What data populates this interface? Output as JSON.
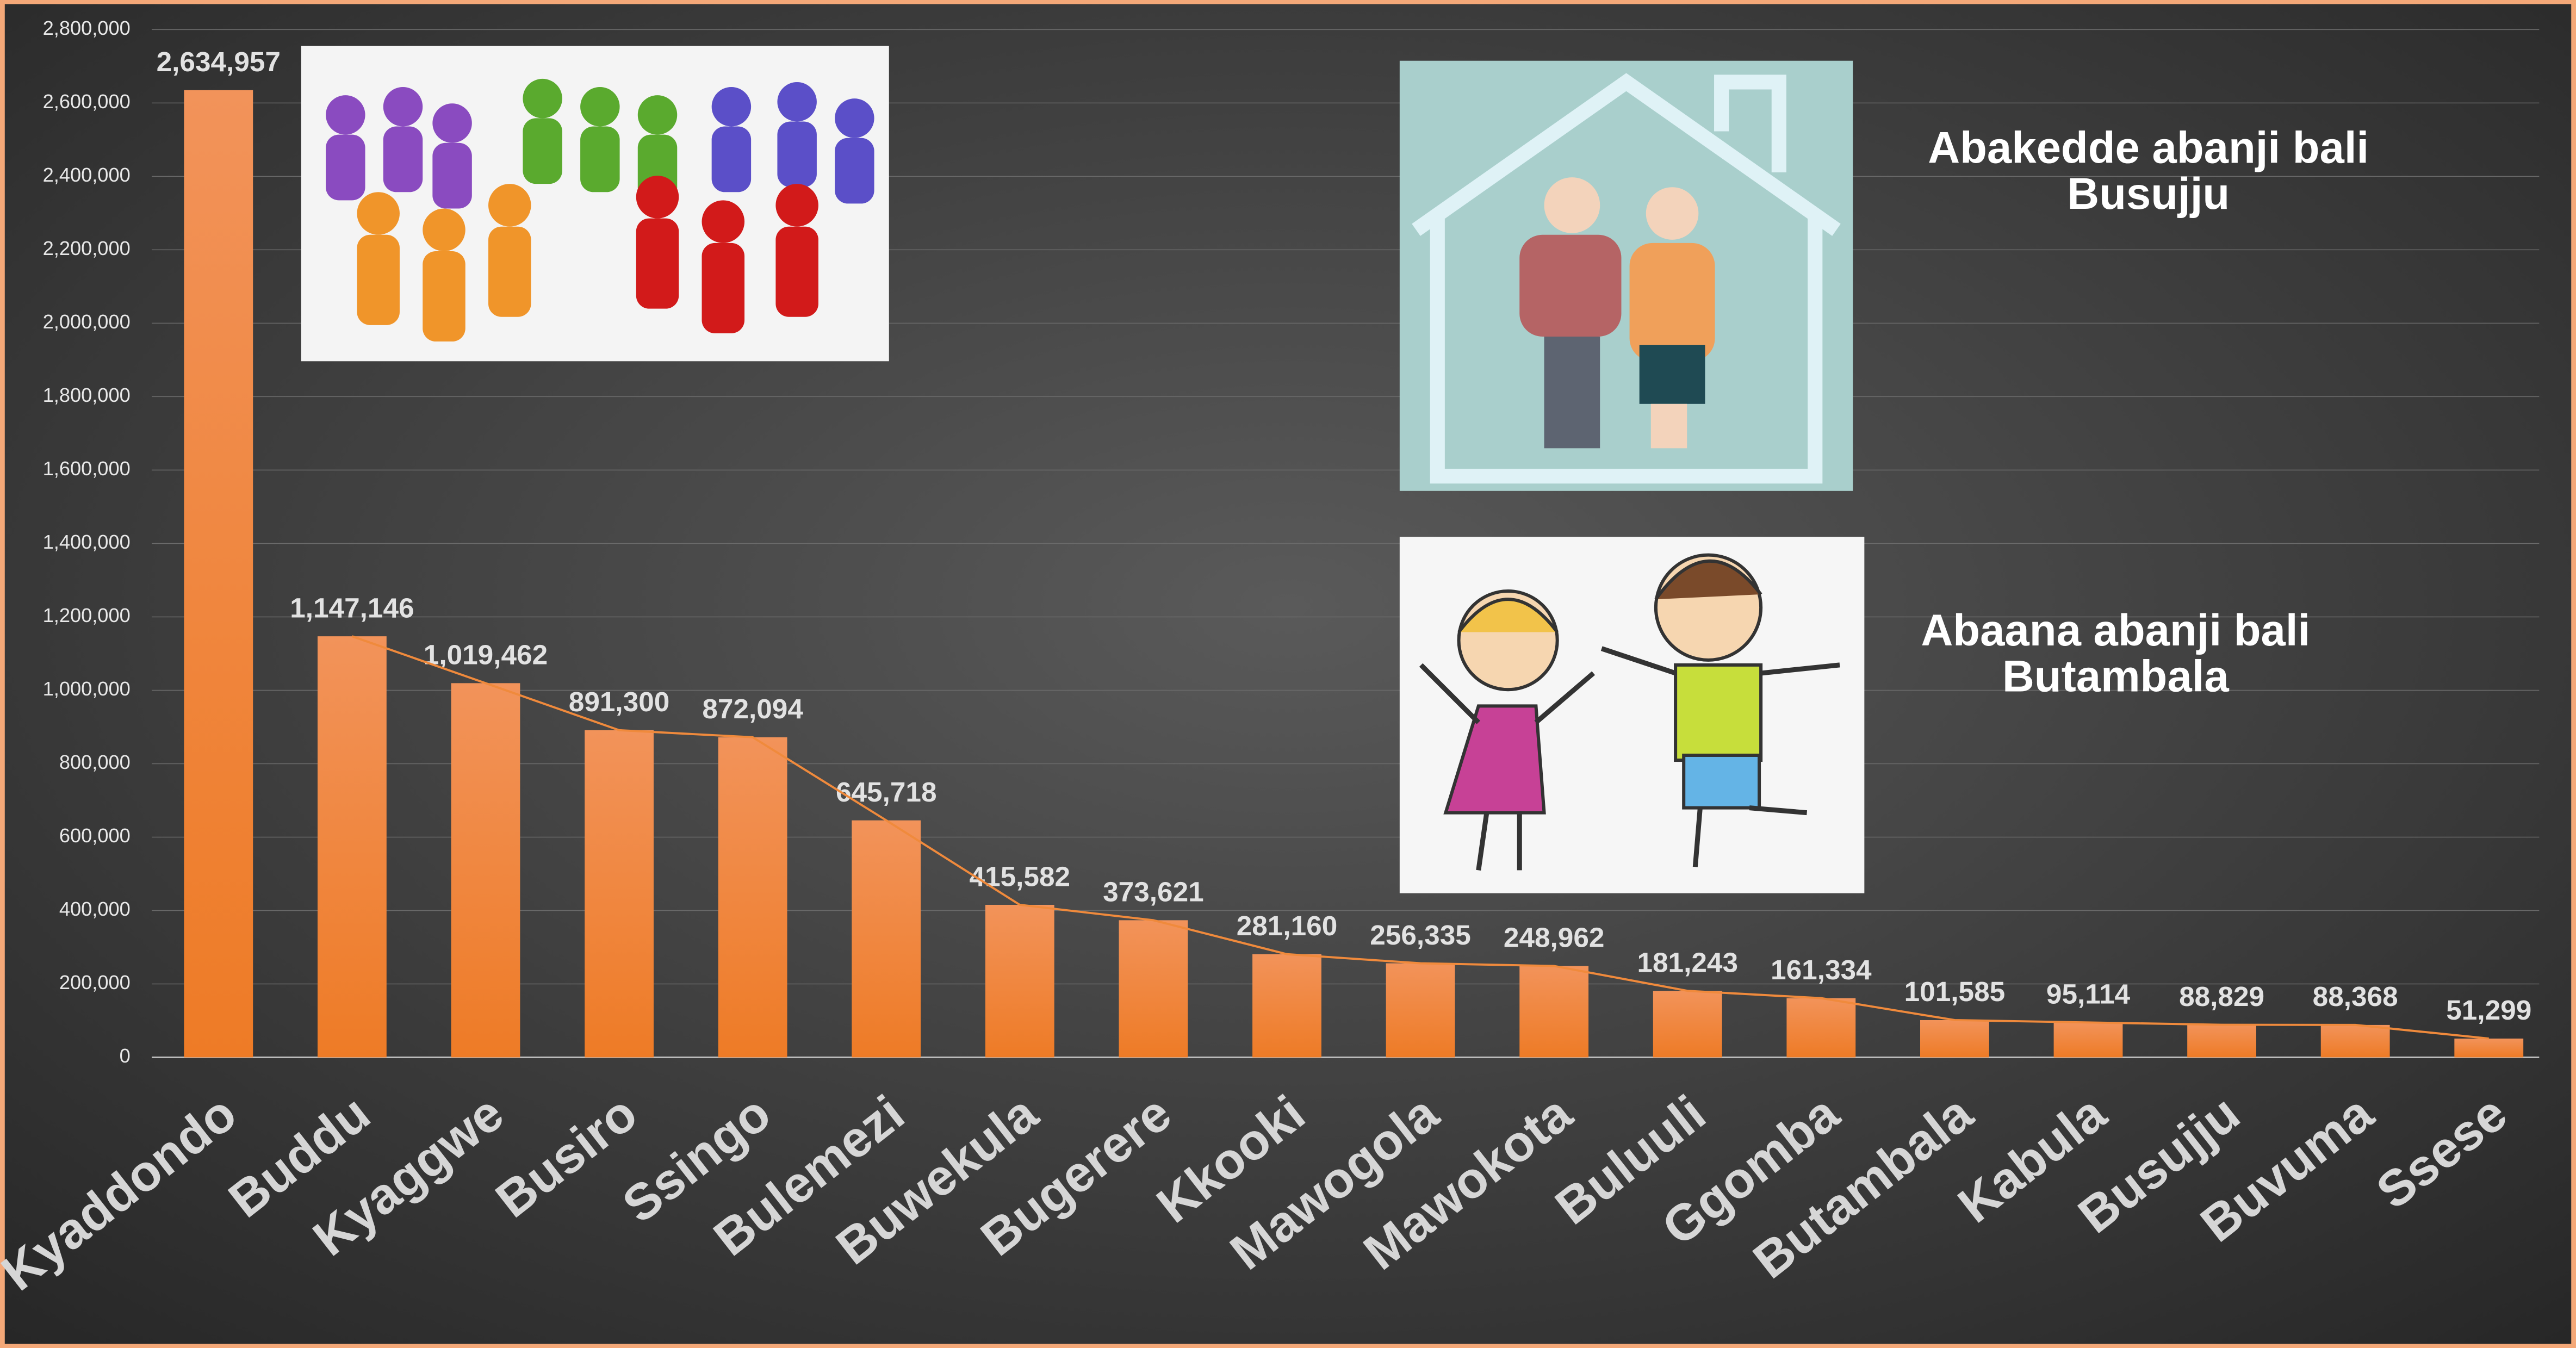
{
  "chart_data": {
    "type": "bar",
    "categories": [
      "Kyaddondo",
      "Buddu",
      "Kyaggwe",
      "Busiro",
      "Ssingo",
      "Bulemezi",
      "Buwekula",
      "Bugerere",
      "Kkooki",
      "Mawogola",
      "Mawokota",
      "Buluuli",
      "Ggomba",
      "Butambala",
      "Kabula",
      "Busujju",
      "Buvuma",
      "Ssese"
    ],
    "values": [
      2634957,
      1147146,
      1019462,
      891300,
      872094,
      645718,
      415582,
      373621,
      281160,
      256335,
      248962,
      181243,
      161334,
      101585,
      95114,
      88829,
      88368,
      51299
    ],
    "value_labels": [
      "2,634,957",
      "1,147,146",
      "1,019,462",
      "891,300",
      "872,094",
      "645,718",
      "415,582",
      "373,621",
      "281,160",
      "256,335",
      "248,962",
      "181,243",
      "161,334",
      "101,585",
      "95,114",
      "88,829",
      "88,368",
      "51,299"
    ],
    "color": "#f0803a",
    "trend_color": "#f08a3c",
    "ylim": [
      0,
      2800000
    ],
    "yticks": [
      {
        "value": 0,
        "label": "0"
      },
      {
        "value": 200000,
        "label": "200,000"
      },
      {
        "value": 400000,
        "label": "400,000"
      },
      {
        "value": 600000,
        "label": "600,000"
      },
      {
        "value": 800000,
        "label": "800,000"
      },
      {
        "value": 1000000,
        "label": "1,000,000"
      },
      {
        "value": 1200000,
        "label": "1,200,000"
      },
      {
        "value": 1400000,
        "label": "1,400,000"
      },
      {
        "value": 1600000,
        "label": "1,600,000"
      },
      {
        "value": 1800000,
        "label": "1,800,000"
      },
      {
        "value": 2000000,
        "label": "2,000,000"
      },
      {
        "value": 2200000,
        "label": "2,200,000"
      },
      {
        "value": 2400000,
        "label": "2,400,000"
      },
      {
        "value": 2600000,
        "label": "2,600,000"
      },
      {
        "value": 2800000,
        "label": "2,800,000"
      }
    ],
    "grid": true,
    "annotations": [
      {
        "lines": [
          "Abakedde abanji bali",
          "Busujju"
        ]
      },
      {
        "lines": [
          "Abaana abanji bali",
          "Butambala"
        ]
      }
    ]
  }
}
